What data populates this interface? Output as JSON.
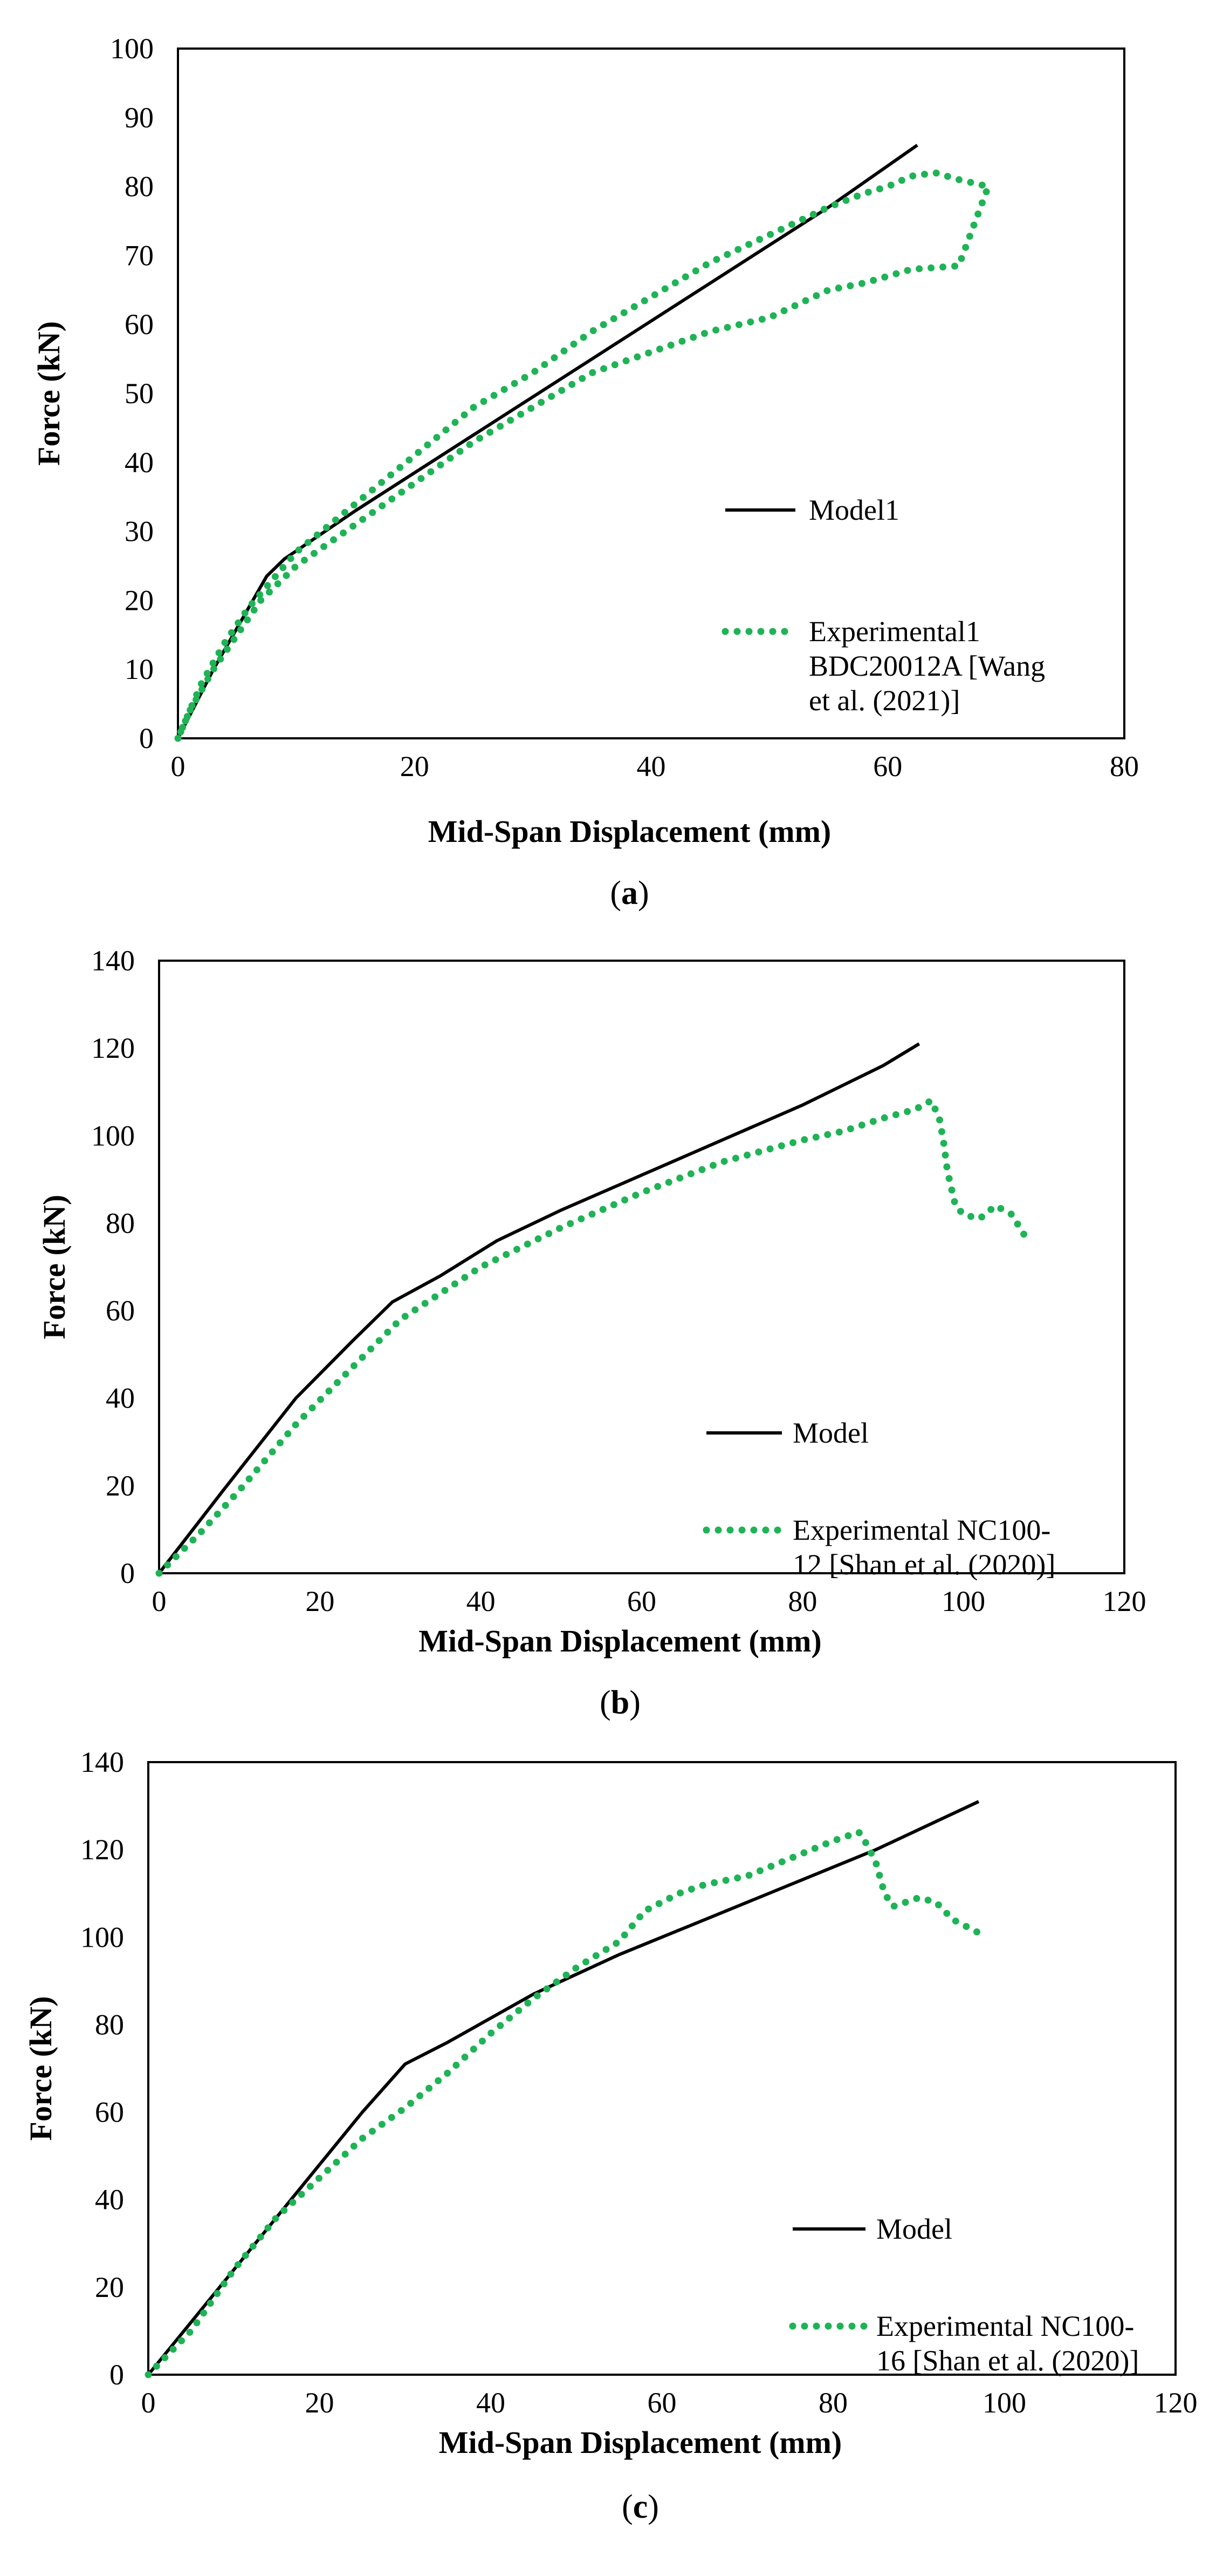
{
  "chart_data": [
    {
      "type": "line",
      "caption": "a",
      "xlabel": "Mid-Span Displacement (mm)",
      "ylabel": "Force (kN)",
      "xlim": [
        0,
        80
      ],
      "ylim": [
        0,
        100
      ],
      "xticks": [
        0,
        20,
        40,
        60,
        80
      ],
      "yticks": [
        0,
        10,
        20,
        30,
        40,
        50,
        60,
        70,
        80,
        90,
        100
      ],
      "legend_position": "bottom-right",
      "series": [
        {
          "name": "Model1",
          "style": "solid",
          "color": "#000000",
          "x": [
            0,
            3,
            5,
            7.5,
            9,
            15,
            25,
            35,
            45,
            55,
            62.5
          ],
          "y": [
            0,
            10,
            16,
            23.5,
            26,
            33,
            44,
            55,
            66,
            77,
            86
          ]
        },
        {
          "name": "Experimental1 BDC20012A [Wang et al. (2021)]",
          "legend_lines": [
            "Experimental1",
            "BDC20012A [Wang",
            "et al. (2021)]"
          ],
          "style": "dotted",
          "color": "#1fb356",
          "x": [
            0,
            1,
            2,
            3,
            4,
            6,
            8,
            10,
            15,
            20,
            25,
            30,
            35,
            40,
            45,
            50,
            55,
            58,
            60,
            62,
            64,
            66,
            68.5,
            66,
            62,
            58,
            55,
            50,
            45,
            40,
            35,
            30,
            25,
            20,
            15,
            10,
            7,
            5,
            3,
            1,
            0
          ],
          "y": [
            0,
            4,
            8,
            11,
            14,
            19,
            23,
            27,
            34,
            41,
            48,
            53,
            59,
            64,
            69,
            73,
            77,
            79,
            80,
            81.5,
            82,
            81,
            80,
            68.5,
            68,
            66,
            65,
            61,
            59,
            56,
            53,
            48,
            43,
            37,
            31,
            25,
            20,
            15,
            10,
            4,
            0
          ]
        }
      ]
    },
    {
      "type": "line",
      "caption": "b",
      "xlabel": "Mid-Span Displacement (mm)",
      "ylabel": "Force (kN)",
      "xlim": [
        0,
        120
      ],
      "ylim": [
        0,
        140
      ],
      "xticks": [
        0,
        20,
        40,
        60,
        80,
        100,
        120
      ],
      "yticks": [
        0,
        20,
        40,
        60,
        80,
        100,
        120,
        140
      ],
      "legend_position": "bottom-right",
      "series": [
        {
          "name": "Model",
          "style": "solid",
          "color": "#000000",
          "x": [
            0,
            8,
            17,
            24,
            29,
            35,
            42,
            50,
            60,
            70,
            80,
            90,
            94.5
          ],
          "y": [
            0,
            19,
            40,
            53,
            62,
            68,
            76,
            83,
            91,
            99,
            107,
            116,
            121
          ]
        },
        {
          "name": "Experimental NC100-12 [Shan et al. (2020)]",
          "legend_lines": [
            "Experimental NC100-",
            "12 [Shan et al. (2020)]"
          ],
          "style": "dotted",
          "color": "#1fb356",
          "x": [
            0,
            5,
            10,
            17,
            24,
            30,
            40,
            50,
            60,
            70,
            80,
            85,
            90,
            94,
            96,
            97,
            97.5,
            98,
            99,
            100,
            102,
            104,
            106,
            108
          ],
          "y": [
            0,
            9,
            19,
            34,
            47,
            58,
            70,
            79,
            87,
            94,
            99,
            101,
            104,
            106,
            108,
            104,
            99,
            92,
            84,
            82,
            81,
            84,
            82,
            76
          ]
        }
      ]
    },
    {
      "type": "line",
      "caption": "c",
      "xlabel": "Mid-Span Displacement (mm)",
      "ylabel": "Force (kN)",
      "xlim": [
        0,
        120
      ],
      "ylim": [
        0,
        140
      ],
      "xticks": [
        0,
        20,
        40,
        60,
        80,
        100,
        120
      ],
      "yticks": [
        0,
        20,
        40,
        60,
        80,
        100,
        120,
        140
      ],
      "legend_position": "bottom-right",
      "series": [
        {
          "name": "Model",
          "style": "solid",
          "color": "#000000",
          "x": [
            0,
            10,
            20,
            25,
            30,
            35,
            45,
            55,
            65,
            75,
            85,
            97
          ],
          "y": [
            0,
            24,
            48,
            60,
            71,
            76,
            87,
            96,
            104,
            112,
            120,
            131
          ]
        },
        {
          "name": "Experimental NC100-16 [Shan et al. (2020)]",
          "legend_lines": [
            "Experimental NC100-",
            "16 [Shan et al. (2020)]"
          ],
          "style": "dotted",
          "color": "#1fb356",
          "x": [
            0,
            5,
            10,
            15,
            20,
            25,
            30,
            35,
            40,
            45,
            50,
            55,
            58,
            62,
            65,
            70,
            75,
            80,
            83,
            84,
            85,
            86,
            87,
            90,
            92,
            94,
            96,
            97
          ],
          "y": [
            0,
            10,
            24,
            36,
            45,
            54,
            61,
            69,
            78,
            86,
            93,
            99,
            106,
            110,
            112,
            114,
            118,
            122,
            124,
            121,
            117,
            110,
            107,
            109,
            108,
            104,
            102,
            101
          ]
        }
      ]
    }
  ]
}
